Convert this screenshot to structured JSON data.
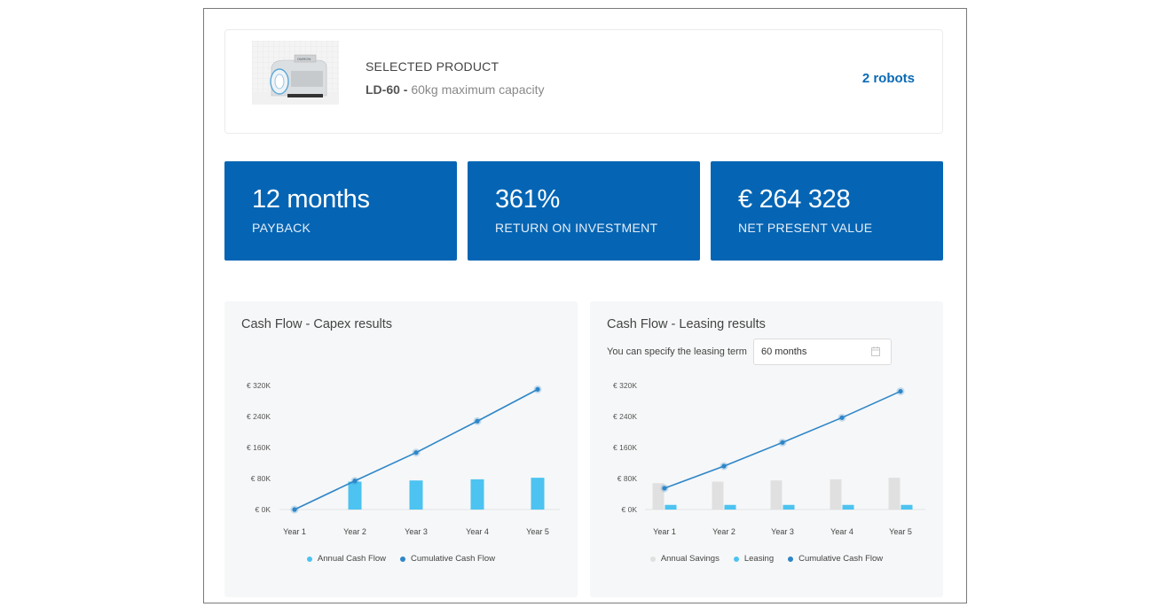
{
  "product": {
    "heading": "SELECTED PRODUCT",
    "model": "LD-60 -",
    "description": "60kg maximum capacity",
    "robots": "2 robots",
    "image_label": "OMRON"
  },
  "kpis": [
    {
      "value": "12 months",
      "label": "PAYBACK"
    },
    {
      "value": "361%",
      "label": "RETURN ON INVESTMENT"
    },
    {
      "value": "€ 264 328",
      "label": "NET PRESENT VALUE"
    }
  ],
  "colors": {
    "brand": "#0565b4",
    "annual": "#4cc3f0",
    "cumulative": "#2e86c8",
    "savings": "#e0e0e0",
    "leasing": "#4cc3f0"
  },
  "capex_panel": {
    "title": "Cash Flow - Capex results",
    "legend": [
      {
        "label": "Annual Cash Flow",
        "color": "#4cc3f0"
      },
      {
        "label": "Cumulative Cash Flow",
        "color": "#2e86c8"
      }
    ]
  },
  "leasing_panel": {
    "title": "Cash Flow - Leasing results",
    "term_label": "You can specify the leasing term",
    "term_value": "60 months",
    "legend": [
      {
        "label": "Annual Savings",
        "color": "#e0e0e0"
      },
      {
        "label": "Leasing",
        "color": "#4cc3f0"
      },
      {
        "label": "Cumulative Cash Flow",
        "color": "#2e86c8"
      }
    ]
  },
  "chart_data": [
    {
      "type": "bar",
      "title": "Cash Flow - Capex results",
      "categories": [
        "Year 1",
        "Year 2",
        "Year 3",
        "Year 4",
        "Year 5"
      ],
      "ytick_labels": [
        "€ 0K",
        "€ 80K",
        "€ 160K",
        "€ 240K",
        "€ 320K"
      ],
      "ylim": [
        0,
        320000
      ],
      "grid": false,
      "legend_position": "bottom",
      "series": [
        {
          "name": "Annual Cash Flow",
          "kind": "bar",
          "values": [
            0,
            72000,
            75000,
            78000,
            82000
          ]
        },
        {
          "name": "Cumulative Cash Flow",
          "kind": "line",
          "values": [
            0,
            74000,
            147000,
            228000,
            310000
          ]
        }
      ]
    },
    {
      "type": "bar",
      "title": "Cash Flow - Leasing results",
      "categories": [
        "Year 1",
        "Year 2",
        "Year 3",
        "Year 4",
        "Year 5"
      ],
      "ytick_labels": [
        "€ 0K",
        "€ 80K",
        "€ 160K",
        "€ 240K",
        "€ 320K"
      ],
      "ylim": [
        0,
        320000
      ],
      "grid": false,
      "legend_position": "bottom",
      "series": [
        {
          "name": "Annual Savings",
          "kind": "bar",
          "values": [
            68000,
            72000,
            75000,
            78000,
            82000
          ]
        },
        {
          "name": "Leasing",
          "kind": "bar",
          "values": [
            12000,
            12000,
            12000,
            12000,
            12000
          ]
        },
        {
          "name": "Cumulative Cash Flow",
          "kind": "line",
          "values": [
            55000,
            112000,
            173000,
            237000,
            305000
          ]
        }
      ]
    }
  ]
}
